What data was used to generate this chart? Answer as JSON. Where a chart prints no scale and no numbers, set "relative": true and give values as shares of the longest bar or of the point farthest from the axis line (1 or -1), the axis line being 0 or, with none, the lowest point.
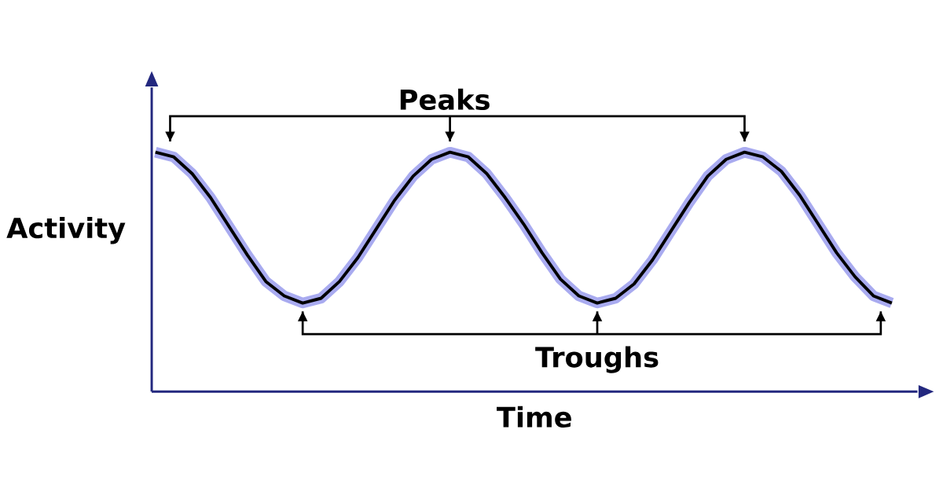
{
  "chart_data": {
    "type": "line",
    "relative": true,
    "xlabel": "Time",
    "ylabel": "Activity",
    "categories": [
      null,
      null,
      null,
      null,
      null,
      null,
      null,
      null,
      null,
      null,
      null,
      null,
      null,
      null,
      null,
      null,
      null,
      null,
      null,
      null,
      null,
      null,
      null,
      null,
      null,
      null,
      null,
      null,
      null,
      null,
      null,
      null,
      null,
      null,
      null,
      null,
      null,
      null,
      null,
      null,
      null
    ],
    "series": [
      {
        "color": "#000000",
        "values": [
          1.0,
          0.98,
          0.91,
          0.81,
          0.69,
          0.57,
          0.46,
          0.4,
          0.37,
          0.39,
          0.46,
          0.56,
          0.68,
          0.8,
          0.9,
          0.97,
          1.0,
          0.98,
          0.91,
          0.81,
          0.7,
          0.58,
          0.47,
          0.4,
          0.37,
          0.39,
          0.45,
          0.55,
          0.67,
          0.79,
          0.9,
          0.97,
          1.0,
          0.98,
          0.92,
          0.82,
          0.7,
          0.58,
          0.48,
          0.4,
          0.37
        ]
      }
    ],
    "annotations": [
      "Peaks",
      "Troughs"
    ],
    "marker": "none",
    "line_style": "solid"
  }
}
